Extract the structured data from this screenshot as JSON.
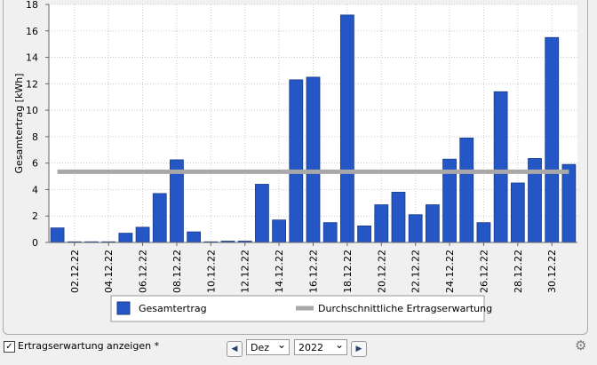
{
  "chart_data": {
    "type": "bar",
    "ylabel": "Gesamtertrag [kWh]",
    "categories": [
      null,
      "02.12.22",
      null,
      "04.12.22",
      null,
      "06.12.22",
      null,
      "08.12.22",
      null,
      "10.12.22",
      null,
      "12.12.22",
      null,
      "14.12.22",
      null,
      "16.12.22",
      null,
      "18.12.22",
      null,
      "20.12.22",
      null,
      "22.12.22",
      null,
      "24.12.22",
      null,
      "26.12.22",
      null,
      "28.12.22",
      null,
      "30.12.22",
      null
    ],
    "series": [
      {
        "name": "Gesamtertrag",
        "color": "#2457c5",
        "values": [
          1.1,
          0.05,
          0.05,
          0.05,
          0.7,
          1.15,
          3.7,
          6.25,
          0.8,
          0.05,
          0.1,
          0.1,
          4.4,
          1.7,
          12.3,
          12.5,
          1.5,
          17.2,
          1.25,
          2.85,
          3.8,
          2.1,
          2.85,
          6.3,
          7.9,
          1.5,
          11.4,
          4.5,
          6.35,
          15.5,
          5.9
        ]
      }
    ],
    "expectation": {
      "name": "Durchschnittliche Ertragserwartung",
      "color": "#a8a8a8",
      "value": 5.35
    },
    "ylim": [
      0,
      18
    ],
    "yticks": [
      0,
      2,
      4,
      6,
      8,
      10,
      12,
      14,
      16,
      18
    ],
    "grid": true
  },
  "controls": {
    "checkbox_label": "Ertragserwartung anzeigen *",
    "month": "Dez",
    "year": "2022"
  }
}
